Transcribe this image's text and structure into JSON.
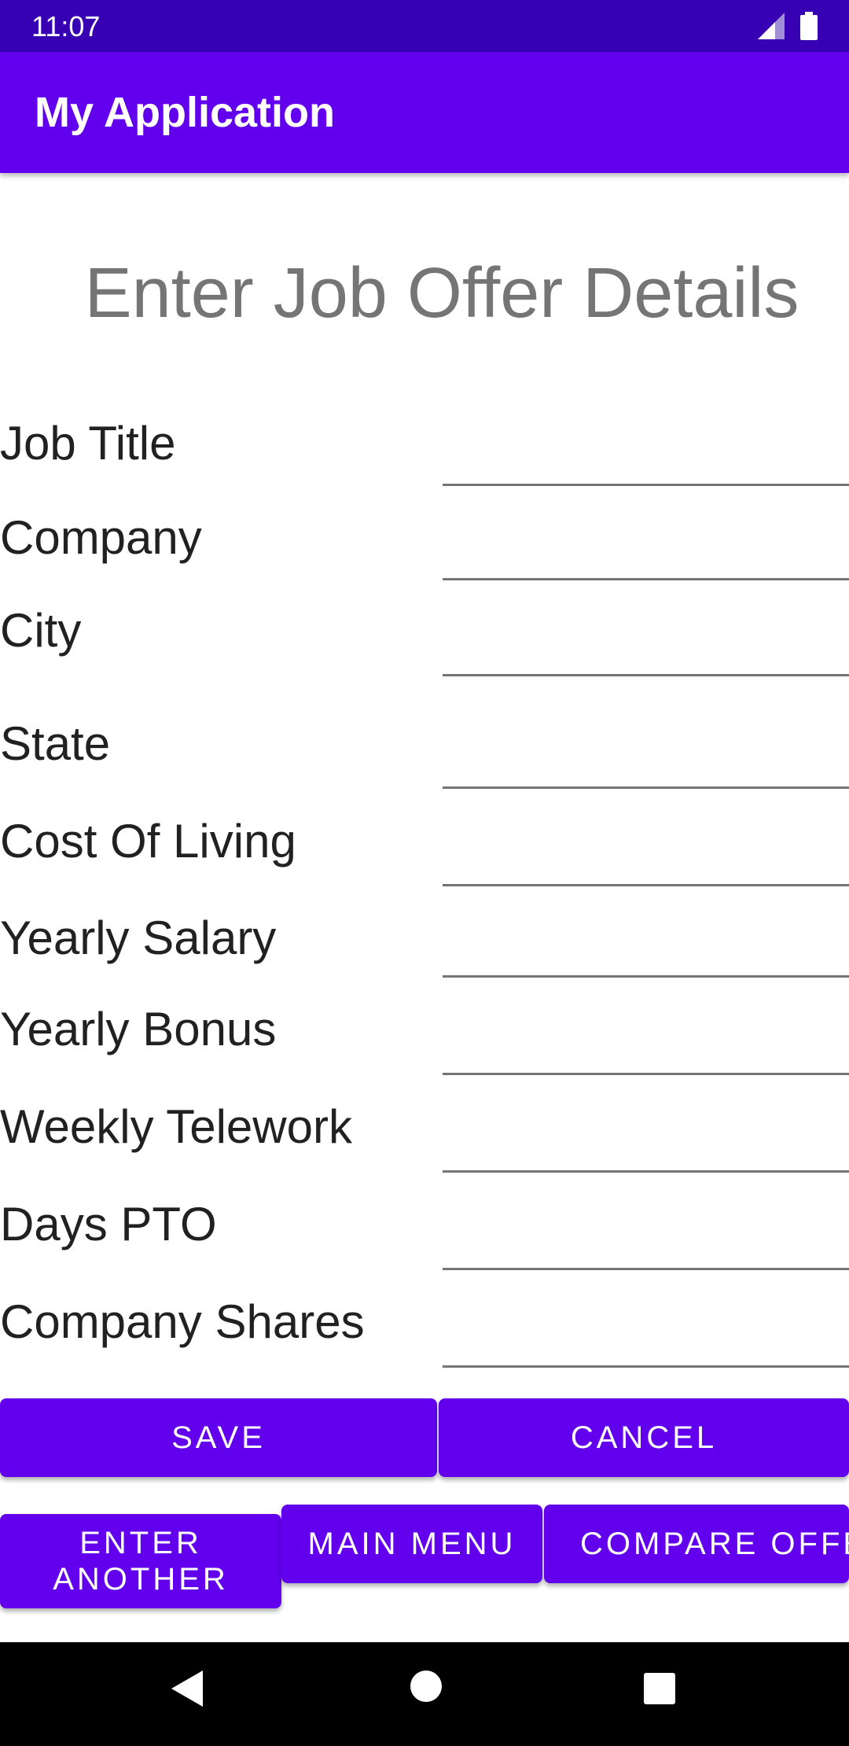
{
  "status_bar": {
    "time": "11:07",
    "icons": [
      "signal-icon",
      "battery-icon"
    ]
  },
  "app_bar": {
    "title": "My Application",
    "color": "#6200ee"
  },
  "page": {
    "heading": "Enter Job Offer Details"
  },
  "form": {
    "fields": [
      {
        "label": "Job Title",
        "value": ""
      },
      {
        "label": "Company",
        "value": ""
      },
      {
        "label": "City",
        "value": ""
      },
      {
        "label": "State",
        "value": ""
      },
      {
        "label": "Cost Of Living",
        "value": ""
      },
      {
        "label": "Yearly Salary",
        "value": ""
      },
      {
        "label": "Yearly Bonus",
        "value": ""
      },
      {
        "label": "Weekly Telework",
        "value": ""
      },
      {
        "label": "Days PTO",
        "value": ""
      },
      {
        "label": "Company Shares",
        "value": ""
      }
    ]
  },
  "buttons": {
    "save": "SAVE",
    "cancel": "CANCEL",
    "enter_another": "ENTER ANOTHER",
    "main_menu": "MAIN MENU",
    "compare_offers": "COMPARE OFFERS"
  },
  "nav_bar": {
    "icons": [
      "back-icon",
      "home-icon",
      "recents-icon"
    ]
  },
  "colors": {
    "status_bar": "#3700b3",
    "primary": "#6200ee",
    "heading_text": "#757575"
  }
}
